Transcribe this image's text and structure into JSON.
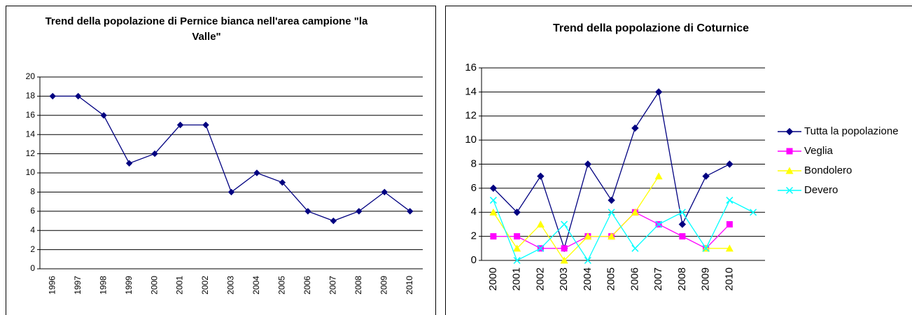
{
  "chart_data": [
    {
      "type": "line",
      "title": "Trend della popolazione di Pernice bianca nell'area campione \"la Valle\"",
      "categories": [
        "1996",
        "1997",
        "1998",
        "1999",
        "2000",
        "2001",
        "2002",
        "2003",
        "2004",
        "2005",
        "2006",
        "2007",
        "2008",
        "2009",
        "2010"
      ],
      "series": [
        {
          "name": null,
          "color": "#000080",
          "marker": "diamond",
          "values": [
            18,
            18,
            16,
            11,
            12,
            15,
            15,
            8,
            10,
            9,
            6,
            5,
            6,
            8,
            6
          ]
        }
      ],
      "ylim": [
        0,
        20
      ],
      "yticks": [
        0,
        2,
        4,
        6,
        8,
        10,
        12,
        14,
        16,
        18,
        20
      ],
      "grid": true
    },
    {
      "type": "line",
      "title": "Trend della popolazione di Coturnice",
      "categories": [
        "2000",
        "2001",
        "2002",
        "2003",
        "2004",
        "2005",
        "2006",
        "2007",
        "2008",
        "2009",
        "2010",
        null
      ],
      "series": [
        {
          "name": "Tutta la popolazione",
          "color": "#000080",
          "marker": "diamond",
          "values": [
            6,
            4,
            7,
            1,
            8,
            5,
            11,
            14,
            3,
            7,
            8,
            null
          ]
        },
        {
          "name": "Veglia",
          "color": "#ff00ff",
          "marker": "square",
          "values": [
            2,
            2,
            1,
            1,
            2,
            2,
            4,
            3,
            2,
            1,
            3,
            null
          ]
        },
        {
          "name": "Bondolero",
          "color": "#ffff00",
          "marker": "triangle",
          "values": [
            4,
            1,
            3,
            0,
            2,
            2,
            4,
            7,
            null,
            1,
            1,
            null
          ]
        },
        {
          "name": "Devero",
          "color": "#00ffff",
          "marker": "x",
          "values": [
            5,
            0,
            1,
            3,
            0,
            4,
            1,
            3,
            4,
            1,
            5,
            4
          ]
        }
      ],
      "ylim": [
        0,
        16
      ],
      "yticks": [
        0,
        2,
        4,
        6,
        8,
        10,
        12,
        14,
        16
      ],
      "grid": true,
      "legend": "right"
    }
  ]
}
